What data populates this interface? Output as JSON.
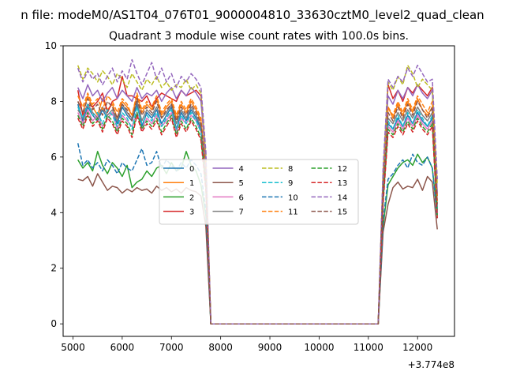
{
  "figure": {
    "suptitle": "n file: modeM0/AS1T04_076T01_9000004810_33630cztM0_level2_quad_clean",
    "title": "Quadrant 3 module wise count rates with 100.0s bins.",
    "x_offset_label": "+3.774e8"
  },
  "chart_data": {
    "type": "line",
    "title": "Quadrant 3 module wise count rates with 100.0s bins.",
    "xlabel": "",
    "ylabel": "",
    "x_offset": 377400000,
    "xlim": [
      4800,
      12750
    ],
    "ylim": [
      -0.45,
      10
    ],
    "x_ticks": [
      5000,
      6000,
      7000,
      8000,
      9000,
      10000,
      11000,
      12000
    ],
    "y_ticks": [
      0,
      2,
      4,
      6,
      8,
      10
    ],
    "grid": false,
    "legend_placement": "center",
    "legend_columns": 4,
    "x": [
      5100,
      5200,
      5300,
      5400,
      5500,
      5600,
      5700,
      5800,
      5900,
      6000,
      6100,
      6200,
      6300,
      6400,
      6500,
      6600,
      6700,
      6800,
      6900,
      7000,
      7100,
      7200,
      7300,
      7400,
      7500,
      7600,
      7700,
      7800,
      11200,
      11300,
      11400,
      11500,
      11600,
      11700,
      11800,
      11900,
      12000,
      12100,
      12200,
      12300,
      12400
    ],
    "series": [
      {
        "name": "0",
        "color": "#1f77b4",
        "dash": "solid",
        "values": [
          7.9,
          7.3,
          7.8,
          7.5,
          7.3,
          7.7,
          7.4,
          7.6,
          7.2,
          7.8,
          7.5,
          7.3,
          7.9,
          7.1,
          7.6,
          7.4,
          7.7,
          7.2,
          7.5,
          7.8,
          7.0,
          7.6,
          7.3,
          7.7,
          7.4,
          7.0,
          5.2,
          0,
          0,
          4.6,
          7.2,
          7.0,
          7.4,
          7.1,
          7.5,
          7.2,
          7.6,
          7.3,
          7.1,
          7.4,
          4.0
        ]
      },
      {
        "name": "1",
        "color": "#ff7f0e",
        "dash": "solid",
        "values": [
          8.0,
          7.6,
          8.2,
          7.8,
          7.5,
          8.1,
          7.7,
          7.9,
          7.4,
          8.0,
          7.8,
          7.5,
          8.2,
          7.6,
          7.9,
          7.7,
          8.1,
          7.5,
          7.8,
          8.0,
          7.4,
          7.9,
          7.6,
          8.0,
          7.7,
          7.3,
          5.4,
          0,
          0,
          4.8,
          7.8,
          7.4,
          7.9,
          7.5,
          8.0,
          7.6,
          8.1,
          7.7,
          7.5,
          7.8,
          4.2
        ]
      },
      {
        "name": "2",
        "color": "#2ca02c",
        "dash": "solid",
        "values": [
          5.9,
          5.6,
          5.8,
          5.5,
          6.2,
          5.7,
          5.4,
          5.8,
          5.6,
          5.3,
          5.7,
          4.9,
          5.1,
          5.2,
          5.5,
          5.3,
          5.6,
          5.7,
          5.4,
          5.8,
          5.5,
          5.6,
          6.2,
          5.7,
          5.5,
          5.0,
          3.9,
          0,
          0,
          3.5,
          5.0,
          5.3,
          5.6,
          5.8,
          5.9,
          5.7,
          6.1,
          5.8,
          6.0,
          5.6,
          3.9
        ]
      },
      {
        "name": "3",
        "color": "#d62728",
        "dash": "solid",
        "values": [
          8.4,
          7.5,
          7.9,
          7.8,
          8.0,
          8.3,
          7.6,
          8.0,
          8.1,
          8.9,
          8.2,
          8.2,
          8.1,
          8.0,
          8.2,
          7.8,
          8.1,
          8.3,
          8.2,
          8.1,
          8.0,
          8.4,
          8.2,
          8.3,
          8.4,
          8.2,
          5.8,
          0,
          0,
          5.2,
          8.6,
          8.1,
          8.4,
          8.0,
          8.5,
          8.3,
          8.6,
          8.4,
          8.2,
          8.5,
          4.6
        ]
      },
      {
        "name": "4",
        "color": "#9467bd",
        "dash": "solid",
        "values": [
          8.5,
          8.1,
          8.6,
          8.2,
          8.4,
          8.0,
          8.3,
          8.5,
          8.1,
          8.4,
          8.2,
          8.0,
          8.5,
          8.1,
          8.3,
          8.2,
          8.4,
          8.0,
          8.3,
          8.5,
          8.1,
          8.4,
          8.2,
          8.5,
          8.3,
          8.0,
          5.9,
          0,
          0,
          5.4,
          8.2,
          7.9,
          8.4,
          8.1,
          8.5,
          8.2,
          8.6,
          8.3,
          8.1,
          8.4,
          4.7
        ]
      },
      {
        "name": "5",
        "color": "#8c564b",
        "dash": "solid",
        "values": [
          5.2,
          5.15,
          5.3,
          4.95,
          5.4,
          5.1,
          4.8,
          4.95,
          4.9,
          4.7,
          4.85,
          4.75,
          4.9,
          4.8,
          4.85,
          4.7,
          4.95,
          4.8,
          4.9,
          4.75,
          4.85,
          4.7,
          4.9,
          4.8,
          4.75,
          4.6,
          3.5,
          0,
          0,
          3.3,
          4.3,
          4.9,
          5.1,
          4.85,
          4.95,
          4.9,
          5.2,
          4.8,
          5.3,
          5.1,
          3.4
        ]
      },
      {
        "name": "6",
        "color": "#e377c2",
        "dash": "solid",
        "values": [
          7.6,
          7.2,
          7.7,
          7.3,
          7.5,
          7.1,
          7.4,
          7.6,
          7.0,
          7.5,
          7.3,
          7.1,
          7.6,
          7.0,
          7.4,
          7.2,
          7.5,
          7.1,
          7.3,
          7.6,
          6.9,
          7.4,
          7.2,
          7.5,
          7.3,
          6.9,
          5.1,
          0,
          0,
          4.5,
          7.1,
          6.9,
          7.3,
          7.0,
          7.4,
          7.1,
          7.5,
          7.2,
          7.0,
          7.3,
          3.9
        ]
      },
      {
        "name": "7",
        "color": "#7f7f7f",
        "dash": "solid",
        "values": [
          7.7,
          7.4,
          7.9,
          7.6,
          7.4,
          7.8,
          7.5,
          7.7,
          7.3,
          7.9,
          7.6,
          7.4,
          8.0,
          7.3,
          7.7,
          7.5,
          7.8,
          7.4,
          7.6,
          7.9,
          7.2,
          7.7,
          7.4,
          7.8,
          7.5,
          7.1,
          5.3,
          0,
          0,
          4.7,
          7.4,
          7.2,
          7.6,
          7.3,
          7.7,
          7.4,
          7.8,
          7.5,
          7.3,
          7.6,
          4.1
        ]
      },
      {
        "name": "8",
        "color": "#bcbd22",
        "dash": "dashed",
        "values": [
          9.3,
          8.8,
          9.2,
          9.0,
          8.7,
          9.1,
          8.9,
          8.6,
          9.0,
          8.8,
          8.5,
          9.0,
          8.7,
          8.4,
          8.8,
          8.6,
          8.9,
          8.5,
          8.7,
          8.4,
          8.6,
          8.5,
          8.8,
          8.4,
          8.6,
          8.3,
          6.1,
          0,
          0,
          5.5,
          8.7,
          8.4,
          8.9,
          8.6,
          9.3,
          9.0,
          8.5,
          8.8,
          8.6,
          8.4,
          5.0
        ]
      },
      {
        "name": "9",
        "color": "#17becf",
        "dash": "dashed",
        "values": [
          7.8,
          7.4,
          7.9,
          7.5,
          7.6,
          7.2,
          7.7,
          7.5,
          7.1,
          7.6,
          7.4,
          7.0,
          7.8,
          7.2,
          7.5,
          7.3,
          7.6,
          7.1,
          7.4,
          7.7,
          7.0,
          7.5,
          7.2,
          7.6,
          7.3,
          6.9,
          5.0,
          0,
          0,
          4.6,
          7.3,
          7.0,
          7.5,
          7.1,
          7.6,
          7.2,
          7.7,
          7.4,
          7.1,
          7.5,
          4.1
        ]
      },
      {
        "name": "10",
        "color": "#1f77b4",
        "dash": "dashed",
        "values": [
          6.5,
          5.7,
          5.9,
          5.6,
          5.8,
          5.5,
          5.9,
          5.7,
          5.4,
          5.8,
          5.6,
          5.5,
          5.9,
          6.3,
          5.7,
          5.8,
          6.2,
          5.6,
          5.9,
          5.7,
          5.5,
          5.8,
          5.6,
          5.9,
          5.7,
          5.4,
          4.1,
          0,
          0,
          3.7,
          5.2,
          5.4,
          5.7,
          5.9,
          5.6,
          6.1,
          5.8,
          5.7,
          6.0,
          5.6,
          3.8
        ]
      },
      {
        "name": "11",
        "color": "#ff7f0e",
        "dash": "dashed",
        "values": [
          8.2,
          7.8,
          8.3,
          7.9,
          8.1,
          7.7,
          8.2,
          8.0,
          7.6,
          8.1,
          7.9,
          7.5,
          8.3,
          7.7,
          8.0,
          7.8,
          8.2,
          7.6,
          7.9,
          8.1,
          7.5,
          8.0,
          7.7,
          8.1,
          7.8,
          7.4,
          5.5,
          0,
          0,
          5.0,
          7.8,
          7.5,
          8.0,
          7.6,
          8.1,
          7.7,
          8.2,
          7.9,
          7.6,
          8.0,
          4.4
        ]
      },
      {
        "name": "12",
        "color": "#2ca02c",
        "dash": "dashed",
        "values": [
          7.5,
          7.1,
          7.6,
          7.2,
          7.4,
          7.0,
          7.5,
          7.3,
          6.9,
          7.4,
          7.2,
          6.8,
          7.6,
          7.0,
          7.3,
          7.1,
          7.4,
          6.9,
          7.2,
          7.5,
          6.8,
          7.3,
          7.0,
          7.4,
          7.1,
          6.7,
          4.9,
          0,
          0,
          4.4,
          7.0,
          6.8,
          7.2,
          6.9,
          7.3,
          7.0,
          7.4,
          7.1,
          6.9,
          7.2,
          3.9
        ]
      },
      {
        "name": "13",
        "color": "#d62728",
        "dash": "dashed",
        "values": [
          7.4,
          7.0,
          7.5,
          7.1,
          7.3,
          6.9,
          7.4,
          7.2,
          6.8,
          7.3,
          7.1,
          6.7,
          7.5,
          6.9,
          7.2,
          7.0,
          7.3,
          6.8,
          7.1,
          7.4,
          6.7,
          7.2,
          6.9,
          7.3,
          7.0,
          6.6,
          4.8,
          0,
          0,
          4.3,
          6.9,
          6.7,
          7.1,
          6.8,
          7.2,
          6.9,
          7.3,
          7.0,
          6.8,
          7.1,
          3.8
        ]
      },
      {
        "name": "14",
        "color": "#9467bd",
        "dash": "dashed",
        "values": [
          9.2,
          8.7,
          9.1,
          8.8,
          9.0,
          8.6,
          8.9,
          9.2,
          8.7,
          9.1,
          8.8,
          9.5,
          9.0,
          8.6,
          9.0,
          9.4,
          8.8,
          9.2,
          8.7,
          9.0,
          8.5,
          8.9,
          8.7,
          9.0,
          8.8,
          8.5,
          6.2,
          0,
          0,
          5.6,
          8.8,
          8.5,
          8.9,
          8.7,
          9.2,
          8.9,
          9.3,
          9.0,
          8.7,
          8.8,
          5.2
        ]
      },
      {
        "name": "15",
        "color": "#8c564b",
        "dash": "dashed",
        "values": [
          8.0,
          7.6,
          8.1,
          7.7,
          7.9,
          7.5,
          8.0,
          7.8,
          7.4,
          7.9,
          7.7,
          7.3,
          8.1,
          7.5,
          7.8,
          7.6,
          8.0,
          7.4,
          7.7,
          7.9,
          7.3,
          7.8,
          7.5,
          7.9,
          7.6,
          7.2,
          5.3,
          0,
          0,
          4.8,
          7.6,
          7.3,
          7.8,
          7.4,
          7.9,
          7.5,
          8.0,
          7.7,
          7.4,
          7.8,
          4.3
        ]
      }
    ]
  }
}
